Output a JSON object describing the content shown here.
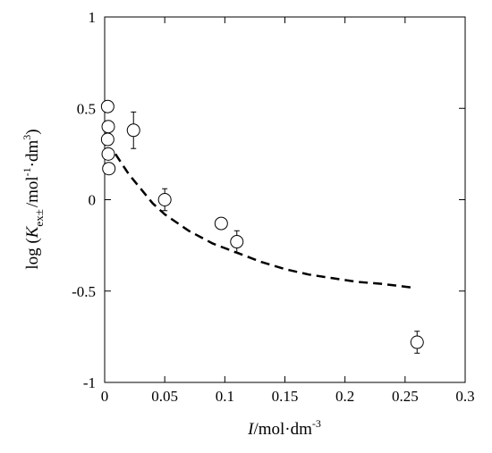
{
  "chart_data": {
    "type": "scatter",
    "xlim": [
      0,
      0.3
    ],
    "ylim": [
      -1,
      1
    ],
    "x_ticks": [
      {
        "value": 0,
        "label": "0"
      },
      {
        "value": 0.05,
        "label": "0.05"
      },
      {
        "value": 0.1,
        "label": "0.1"
      },
      {
        "value": 0.15,
        "label": "0.15"
      },
      {
        "value": 0.2,
        "label": "0.2"
      },
      {
        "value": 0.25,
        "label": "0.25"
      },
      {
        "value": 0.3,
        "label": "0.3"
      }
    ],
    "y_ticks": [
      {
        "value": 1,
        "label": "1"
      },
      {
        "value": 0.5,
        "label": "0.5"
      },
      {
        "value": 0,
        "label": "0"
      },
      {
        "value": -0.5,
        "label": "-0.5"
      },
      {
        "value": -1,
        "label": "-1"
      }
    ],
    "xlabel": {
      "italic": "I",
      "rest": "/mol·dm",
      "sup": "-3"
    },
    "ylabel": {
      "pre": "log (",
      "italic": "K",
      "sub": "ex±",
      "mid": "/mol",
      "sup1": "-1",
      "mid2": "·dm",
      "sup2": "3",
      "post": ")"
    },
    "grid": false,
    "series": [
      {
        "marker": "open-circle",
        "points": [
          {
            "x": 0.0025,
            "y": 0.51
          },
          {
            "x": 0.003,
            "y": 0.4
          },
          {
            "x": 0.0025,
            "y": 0.33
          },
          {
            "x": 0.003,
            "y": 0.25
          },
          {
            "x": 0.0035,
            "y": 0.17
          },
          {
            "x": 0.024,
            "y": 0.38,
            "err": 0.1
          },
          {
            "x": 0.05,
            "y": 0.0,
            "err": 0.06
          },
          {
            "x": 0.097,
            "y": -0.13
          },
          {
            "x": 0.11,
            "y": -0.23,
            "err": 0.06
          },
          {
            "x": 0.26,
            "y": -0.78,
            "err": 0.06
          }
        ]
      },
      {
        "style": "dashed",
        "color": "#000000",
        "x": [
          0.009,
          0.02,
          0.03,
          0.04,
          0.05,
          0.07,
          0.09,
          0.11,
          0.13,
          0.15,
          0.17,
          0.19,
          0.21,
          0.23,
          0.255
        ],
        "y": [
          0.25,
          0.14,
          0.06,
          -0.02,
          -0.08,
          -0.17,
          -0.24,
          -0.29,
          -0.34,
          -0.38,
          -0.41,
          -0.43,
          -0.45,
          -0.46,
          -0.48
        ]
      }
    ]
  }
}
